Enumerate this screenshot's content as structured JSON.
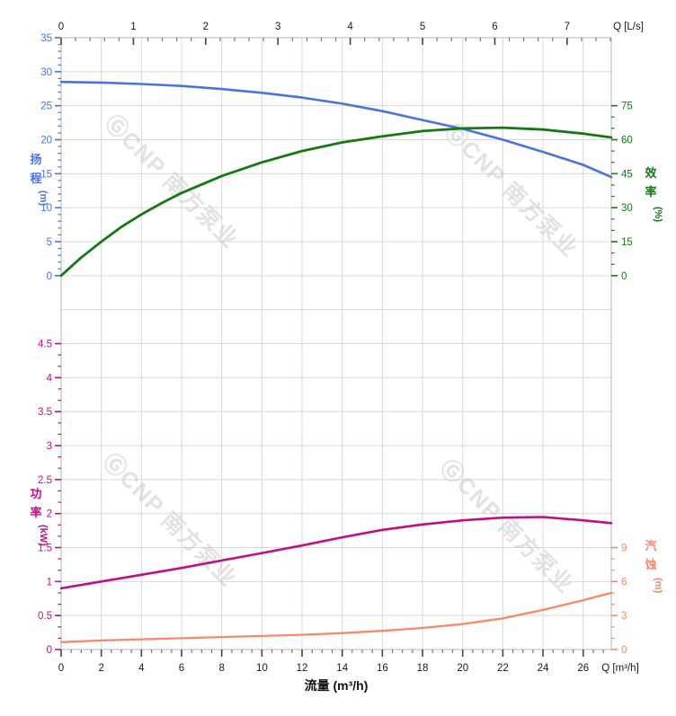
{
  "watermark": {
    "text": "ⒼCNP 南方泵业",
    "color": "#c6c6c6"
  },
  "chart_data": {
    "type": "line",
    "title": "",
    "description": "Pump performance curves: head, efficiency, power and NPSH versus flow rate",
    "grid": true,
    "colors": {
      "grid": "#d9d9d9",
      "border": "#c2c2c2",
      "dark_tick": "#444444",
      "dark_minor": "#777777",
      "head": "#4a73e0",
      "efficiency": "#137913",
      "power": "#c40d84",
      "npsh": "#f9886b"
    },
    "axes": {
      "x_bottom": {
        "label": "Q [m³/h]",
        "title": "流量 (m³/h)",
        "min": 0,
        "max": 27.4,
        "tick_values": [
          0,
          2,
          4,
          6,
          8,
          10,
          12,
          14,
          16,
          18,
          20,
          22,
          24,
          26
        ],
        "tick_labels": [
          "0",
          "2",
          "4",
          "6",
          "8",
          "10",
          "12",
          "14",
          "16",
          "18",
          "20",
          "22",
          "24",
          "26"
        ],
        "minor_step": 0.5
      },
      "x_top": {
        "label": "Q [L/s]",
        "min": 0,
        "max": 7.61,
        "to_bottom_factor": 3.6,
        "tick_values": [
          0,
          1,
          2,
          3,
          4,
          5,
          6,
          7
        ],
        "tick_labels": [
          "0",
          "1",
          "2",
          "3",
          "4",
          "5",
          "6",
          "7"
        ],
        "minor_step": 0.2
      },
      "y_head": {
        "title_chars": "扬程",
        "unit": "(m)",
        "side": "left",
        "zone": "top",
        "min": 0,
        "max": 35,
        "tick_values": [
          0,
          5,
          10,
          15,
          20,
          25,
          30,
          35
        ],
        "tick_labels": [
          "0",
          "5",
          "10",
          "15",
          "20",
          "25",
          "30",
          "35"
        ],
        "minor_step": 1
      },
      "y_eff": {
        "title_chars": "效率",
        "unit": "(%)",
        "side": "right",
        "zone": "top",
        "min": 0,
        "max": 75,
        "tick_values": [
          0,
          15,
          30,
          45,
          60,
          75
        ],
        "tick_labels": [
          "0",
          "15",
          "30",
          "45",
          "60",
          "75"
        ],
        "minor_step": 5
      },
      "y_power": {
        "title_chars": "功率",
        "unit": "(kW)",
        "side": "left",
        "zone": "bottom",
        "min": 0,
        "max": 4.5,
        "tick_values": [
          0,
          0.5,
          1,
          1.5,
          2,
          2.5,
          3,
          3.5,
          4,
          4.5
        ],
        "tick_labels": [
          "0",
          "0.5",
          "1",
          "1.5",
          "2",
          "2.5",
          "3",
          "3.5",
          "4",
          "4.5"
        ],
        "minor_step": 0.1666667
      },
      "y_npsh": {
        "title_chars": "汽蚀",
        "unit": "(m)",
        "side": "right",
        "zone": "bottom",
        "min": 0,
        "max": 9,
        "tick_values": [
          0,
          3,
          6,
          9
        ],
        "tick_labels": [
          "0",
          "3",
          "6",
          "9"
        ],
        "minor_step": 1
      }
    },
    "series": [
      {
        "name": "head",
        "label": "扬程",
        "axis": "y_head",
        "color": "#4a73e0",
        "width": 2.6,
        "points": [
          [
            0,
            28.5
          ],
          [
            2,
            28.4
          ],
          [
            4,
            28.2
          ],
          [
            6,
            27.9
          ],
          [
            8,
            27.45
          ],
          [
            10,
            26.9
          ],
          [
            12,
            26.2
          ],
          [
            14,
            25.3
          ],
          [
            16,
            24.2
          ],
          [
            18,
            22.9
          ],
          [
            20,
            21.6
          ],
          [
            22,
            20.0
          ],
          [
            24,
            18.2
          ],
          [
            26,
            16.3
          ],
          [
            27.4,
            14.5
          ]
        ]
      },
      {
        "name": "efficiency",
        "label": "效率",
        "axis": "y_eff",
        "color": "#137913",
        "width": 2.8,
        "points": [
          [
            0,
            0
          ],
          [
            1,
            8
          ],
          [
            2,
            15
          ],
          [
            3,
            21.5
          ],
          [
            4,
            27
          ],
          [
            5,
            32
          ],
          [
            6,
            36.5
          ],
          [
            8,
            44
          ],
          [
            10,
            50
          ],
          [
            12,
            55
          ],
          [
            14,
            58.8
          ],
          [
            16,
            61.5
          ],
          [
            18,
            63.8
          ],
          [
            20,
            65
          ],
          [
            22,
            65.3
          ],
          [
            24,
            64.5
          ],
          [
            26,
            62.7
          ],
          [
            27.4,
            61
          ]
        ]
      },
      {
        "name": "power",
        "label": "功率",
        "axis": "y_power",
        "color": "#c40d84",
        "width": 2.6,
        "points": [
          [
            0,
            0.9
          ],
          [
            2,
            1.0
          ],
          [
            4,
            1.1
          ],
          [
            6,
            1.2
          ],
          [
            8,
            1.31
          ],
          [
            10,
            1.42
          ],
          [
            12,
            1.53
          ],
          [
            14,
            1.65
          ],
          [
            16,
            1.76
          ],
          [
            18,
            1.84
          ],
          [
            20,
            1.9
          ],
          [
            22,
            1.94
          ],
          [
            24,
            1.95
          ],
          [
            26,
            1.9
          ],
          [
            27.4,
            1.86
          ]
        ]
      },
      {
        "name": "npsh",
        "label": "汽蚀",
        "axis": "y_npsh",
        "color": "#f9886b",
        "width": 2.3,
        "points": [
          [
            0,
            0.65
          ],
          [
            2,
            0.8
          ],
          [
            4,
            0.9
          ],
          [
            6,
            1.0
          ],
          [
            8,
            1.1
          ],
          [
            10,
            1.2
          ],
          [
            12,
            1.3
          ],
          [
            14,
            1.45
          ],
          [
            16,
            1.65
          ],
          [
            18,
            1.9
          ],
          [
            20,
            2.25
          ],
          [
            22,
            2.75
          ],
          [
            24,
            3.5
          ],
          [
            26,
            4.35
          ],
          [
            27.4,
            5.0
          ]
        ]
      }
    ]
  }
}
